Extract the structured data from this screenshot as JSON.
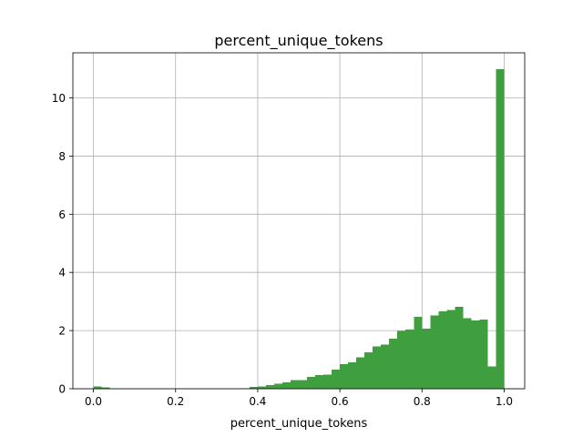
{
  "chart_data": {
    "type": "bar",
    "title": "percent_unique_tokens",
    "xlabel": "percent_unique_tokens",
    "ylabel": "",
    "xlim": [
      -0.05,
      1.05
    ],
    "ylim": [
      0,
      11.55
    ],
    "xticks": [
      0.0,
      0.2,
      0.4,
      0.6,
      0.8,
      1.0
    ],
    "xtick_labels": [
      "0.0",
      "0.2",
      "0.4",
      "0.6",
      "0.8",
      "1.0"
    ],
    "yticks": [
      0,
      2,
      4,
      6,
      8,
      10
    ],
    "ytick_labels": [
      "0",
      "2",
      "4",
      "6",
      "8",
      "10"
    ],
    "grid": true,
    "bar_color": "#3f9f3f",
    "bin_start": 0.0,
    "bin_width": 0.02,
    "values": [
      0.08,
      0.04,
      0,
      0,
      0,
      0,
      0,
      0,
      0,
      0,
      0,
      0,
      0,
      0,
      0,
      0,
      0,
      0,
      0.02,
      0.06,
      0.08,
      0.12,
      0.17,
      0.22,
      0.3,
      0.3,
      0.4,
      0.47,
      0.48,
      0.66,
      0.85,
      0.9,
      1.08,
      1.25,
      1.45,
      1.52,
      1.72,
      1.98,
      2.03,
      2.48,
      2.06,
      2.52,
      2.66,
      2.7,
      2.82,
      2.42,
      2.35,
      2.38,
      0.77,
      10.98
    ]
  }
}
